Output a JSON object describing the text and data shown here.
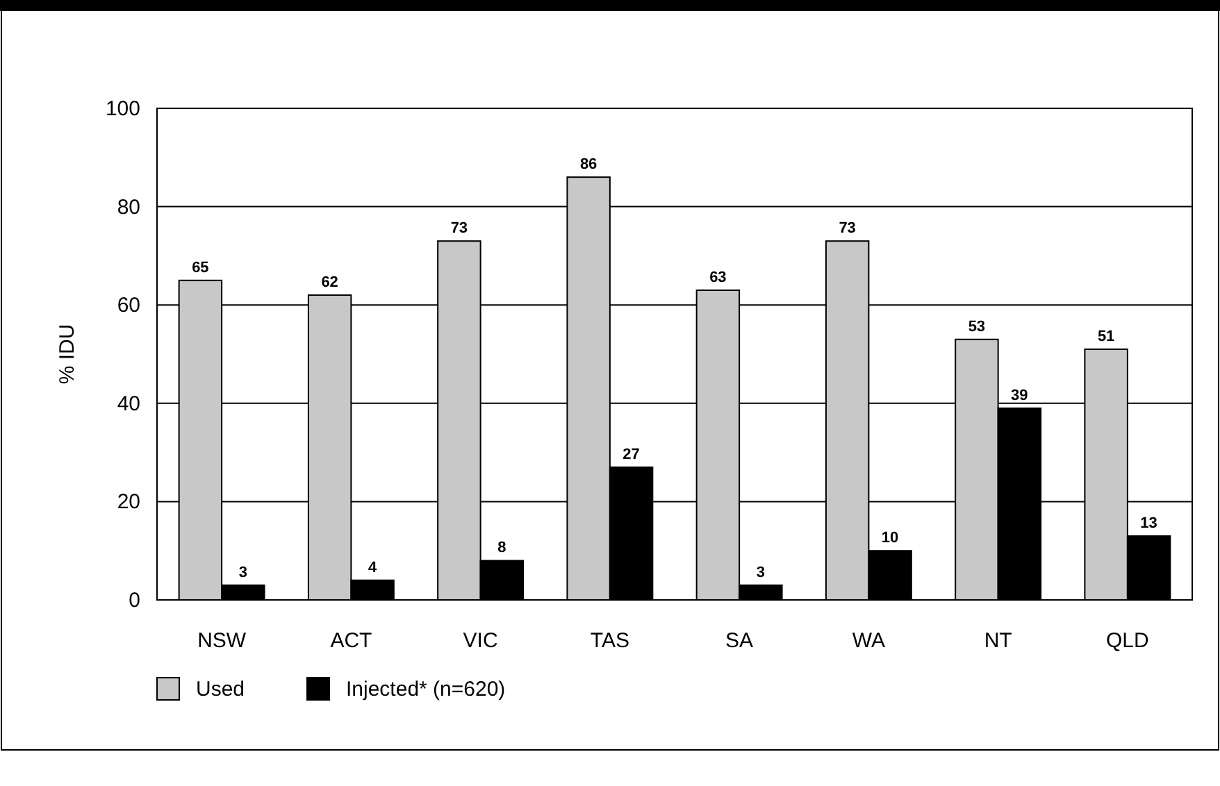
{
  "chart_data": {
    "type": "bar",
    "ylabel": "% IDU",
    "categories": [
      "NSW",
      "ACT",
      "VIC",
      "TAS",
      "SA",
      "WA",
      "NT",
      "QLD"
    ],
    "series": [
      {
        "name": "Used",
        "color": "#c8c8c8",
        "values": [
          65,
          62,
          73,
          86,
          63,
          73,
          53,
          51
        ]
      },
      {
        "name": "Injected* (n=620)",
        "color": "#000000",
        "values": [
          3,
          4,
          8,
          27,
          3,
          10,
          39,
          13
        ]
      }
    ],
    "ylim": [
      0,
      100
    ],
    "yticks": [
      0,
      20,
      40,
      60,
      80,
      100
    ],
    "grid": "y",
    "data_labels": true,
    "legend": "bottom left"
  }
}
